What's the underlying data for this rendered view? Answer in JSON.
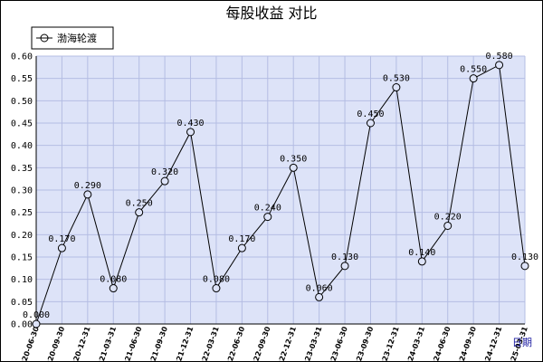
{
  "chart_data": {
    "type": "line",
    "title": "每股收益  对比",
    "x_unit_label": "日期",
    "legend": {
      "placement": "top-left",
      "entries": [
        "渤海轮渡"
      ]
    },
    "grid": true,
    "ylim": [
      0,
      0.6
    ],
    "y_ticks": [
      "0.00",
      "0.05",
      "0.10",
      "0.15",
      "0.20",
      "0.25",
      "0.30",
      "0.35",
      "0.40",
      "0.45",
      "0.50",
      "0.55",
      "0.60"
    ],
    "categories": [
      "2020-06-30",
      "2020-09-30",
      "2020-12-31",
      "2021-03-31",
      "2021-06-30",
      "2021-09-30",
      "2021-12-31",
      "2022-03-31",
      "2022-06-30",
      "2022-09-30",
      "2022-12-31",
      "2023-03-31",
      "2023-06-30",
      "2023-09-30",
      "2023-12-31",
      "2024-03-31",
      "2024-06-30",
      "2024-09-30",
      "2024-12-31",
      "2025-03-31"
    ],
    "series": [
      {
        "name": "渤海轮渡",
        "values": [
          0.0,
          0.17,
          0.29,
          0.08,
          0.25,
          0.32,
          0.43,
          0.08,
          0.17,
          0.24,
          0.35,
          0.06,
          0.13,
          0.45,
          0.53,
          0.14,
          0.22,
          0.55,
          0.58,
          0.13
        ],
        "labels": [
          "0.000",
          "0.170",
          "0.290",
          "0.080",
          "0.250",
          "0.320",
          "0.430",
          "0.080",
          "0.170",
          "0.240",
          "0.350",
          "0.060",
          "0.130",
          "0.450",
          "0.530",
          "0.140",
          "0.220",
          "0.550",
          "0.580",
          "0.130"
        ]
      }
    ]
  },
  "colors": {
    "plot_bg": "#dde3f8",
    "grid": "#b4bde3",
    "line": "#000000"
  }
}
